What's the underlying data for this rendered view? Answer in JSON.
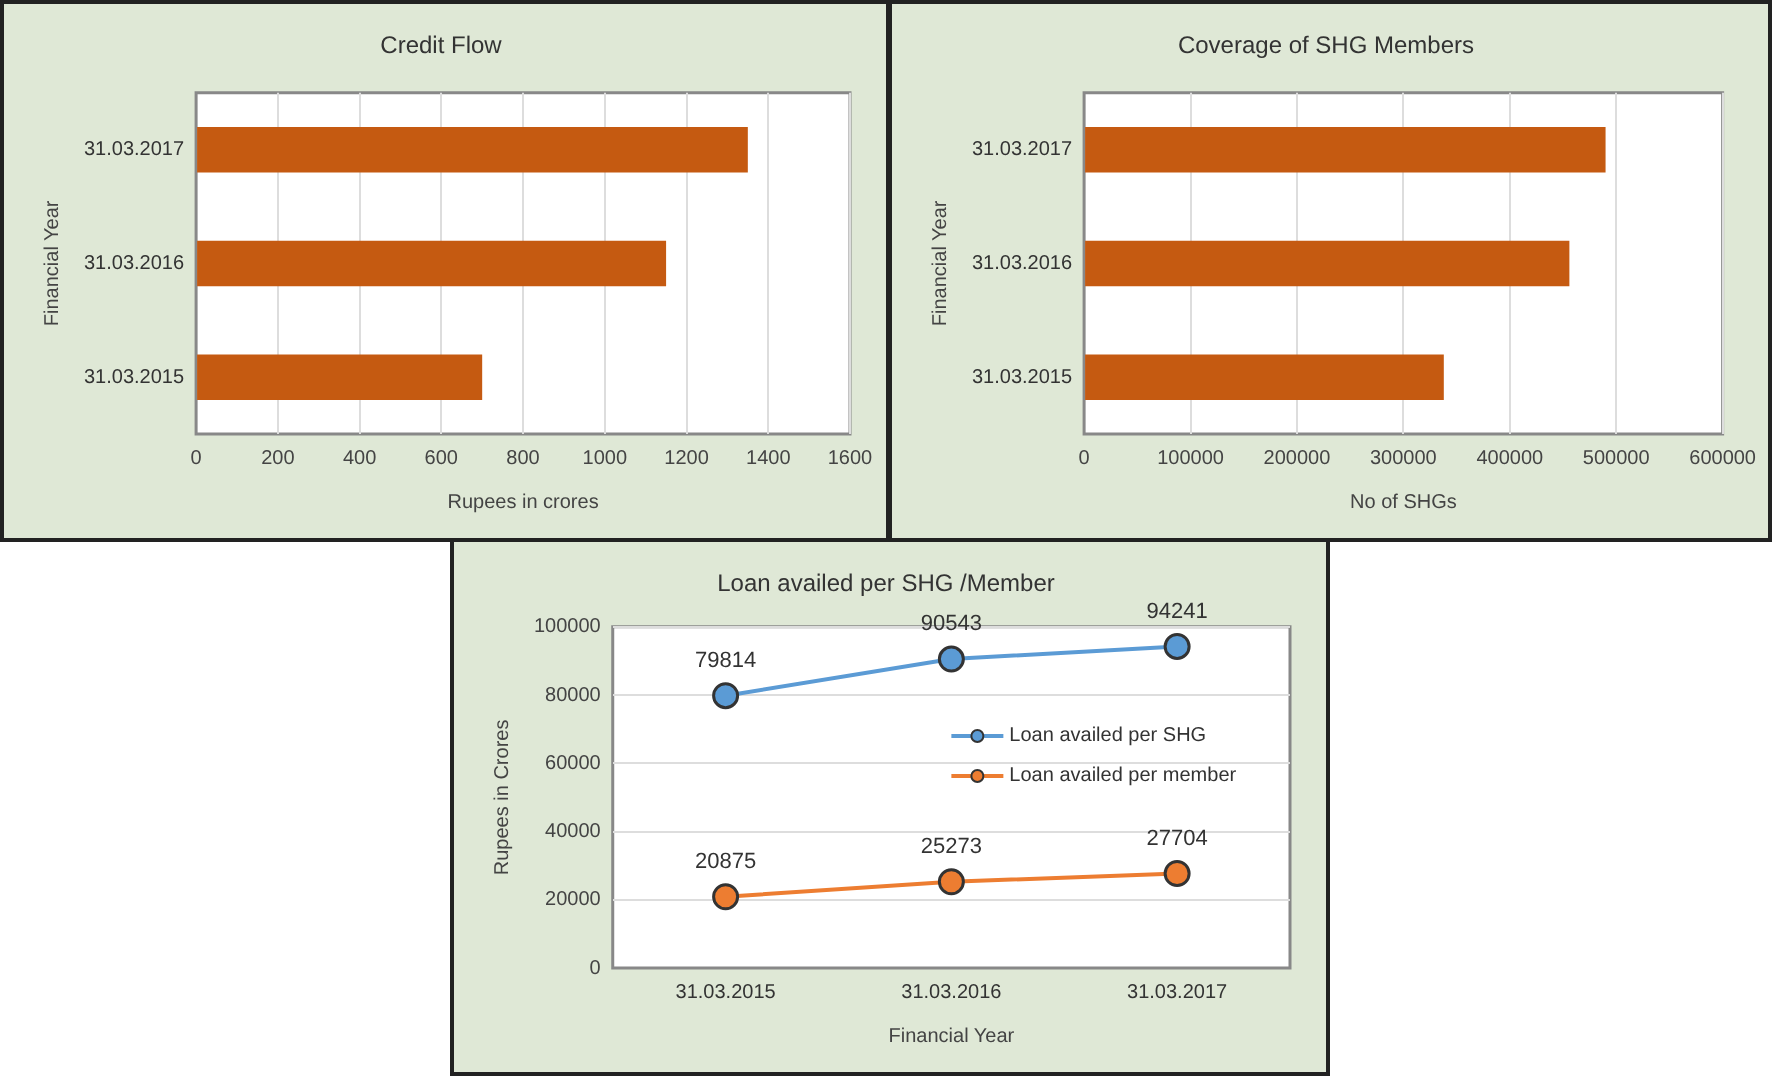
{
  "chart_data": [
    {
      "type": "bar",
      "title": "Credit Flow",
      "orientation": "horizontal",
      "categories": [
        "31.03.2017",
        "31.03.2016",
        "31.03.2015"
      ],
      "values": [
        1350,
        1150,
        700
      ],
      "color": "#c55a11",
      "xlabel": "Rupees in crores",
      "ylabel": "Financial Year",
      "xlim": [
        0,
        1600
      ],
      "xticks": [
        0,
        200,
        400,
        600,
        800,
        1000,
        1200,
        1400,
        1600
      ],
      "grid": "x",
      "legend": false
    },
    {
      "type": "bar",
      "title": "Coverage of SHG Members",
      "orientation": "horizontal",
      "categories": [
        "31.03.2017",
        "31.03.2016",
        "31.03.2015"
      ],
      "values": [
        490000,
        456000,
        338000
      ],
      "color": "#c55a11",
      "xlabel": "No of SHGs",
      "ylabel": "Financial Year",
      "xlim": [
        0,
        600000
      ],
      "xticks": [
        0,
        100000,
        200000,
        300000,
        400000,
        500000,
        600000
      ],
      "grid": "x",
      "legend": false
    },
    {
      "type": "line",
      "title": "Loan availed per SHG /Member",
      "categories": [
        "31.03.2015",
        "31.03.2016",
        "31.03.2017"
      ],
      "series": [
        {
          "name": "Loan availed per SHG",
          "color": "#5b9bd5",
          "values": [
            79814,
            90543,
            94241
          ]
        },
        {
          "name": "Loan availed per member",
          "color": "#ed7d31",
          "values": [
            20875,
            25273,
            27704
          ]
        }
      ],
      "xlabel": "Financial Year",
      "ylabel": "Rupees in Crores",
      "ylim": [
        0,
        100000
      ],
      "yticks": [
        0,
        20000,
        40000,
        60000,
        80000,
        100000
      ],
      "grid": "y",
      "legend": "right",
      "marker": "circle",
      "data_labels": true
    }
  ]
}
